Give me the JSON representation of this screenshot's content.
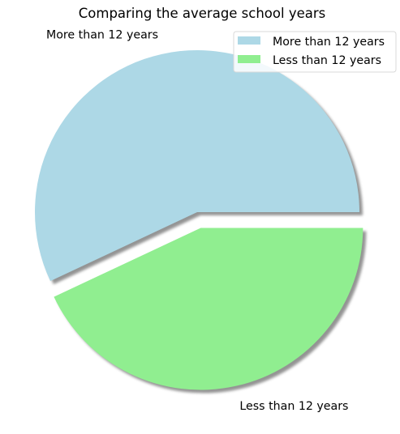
{
  "chart_data": {
    "type": "pie",
    "title": "Comparing the average school years",
    "labels": [
      "More than 12 years",
      "Less than 12 years"
    ],
    "values": [
      57,
      43
    ],
    "colors": [
      "#add8e6",
      "#90ee90"
    ],
    "explode": [
      0,
      0.1
    ],
    "shadow": true,
    "start_angle_deg": 0,
    "direction": "counterclockwise",
    "legend": {
      "position": "top-right",
      "entries": [
        "More than 12 years",
        "Less than 12 years"
      ]
    }
  }
}
